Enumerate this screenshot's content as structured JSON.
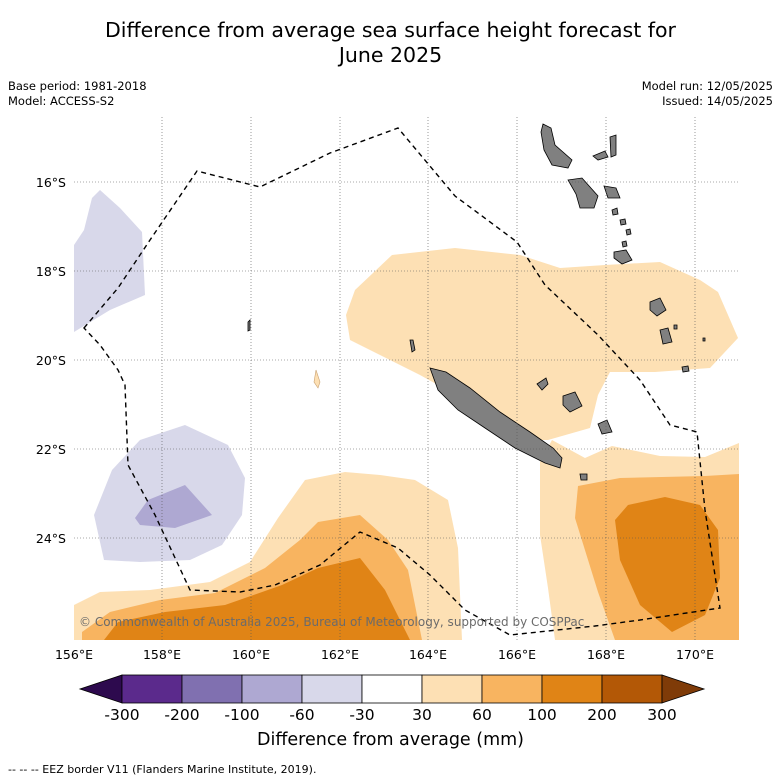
{
  "title": {
    "line1": "Difference from average sea surface height forecast for",
    "line2": "June 2025"
  },
  "meta": {
    "base_period": "Base period: 1981-2018",
    "model": "Model: ACCESS-S2",
    "model_run": "Model run: 12/05/2025",
    "issued": "Issued: 14/05/2025"
  },
  "map": {
    "lon_labels": [
      "156°E",
      "158°E",
      "160°E",
      "162°E",
      "164°E",
      "166°E",
      "168°E",
      "170°E"
    ],
    "lat_labels": [
      "16°S",
      "18°S",
      "20°S",
      "22°S",
      "24°S"
    ],
    "copyright": "© Commonwealth of Australia 2025, Bureau of Meteorology, supported by COSPPac",
    "colors": {
      "land": "#808080",
      "eez_border": "#000000"
    }
  },
  "colorbar": {
    "ticks": [
      "-300",
      "-200",
      "-100",
      "-60",
      "-30",
      "30",
      "60",
      "100",
      "200",
      "300"
    ],
    "colors": [
      "#2d0a4e",
      "#5b2a8c",
      "#8070b0",
      "#aea8d2",
      "#d8d8ea",
      "#ffffff",
      "#fde0b4",
      "#f8b460",
      "#e08416",
      "#b35806",
      "#7f3b08"
    ],
    "label": "Difference from average (mm)"
  },
  "footnote": "--  --  -- EEZ border V11 (Flanders Marine Institute, 2019)."
}
